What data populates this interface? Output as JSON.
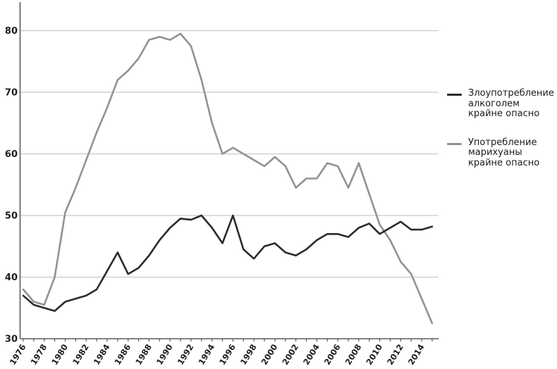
{
  "chart_data": {
    "type": "line",
    "title": "",
    "xlabel": "",
    "ylabel": "",
    "x": [
      1976,
      1977,
      1978,
      1979,
      1980,
      1981,
      1982,
      1983,
      1984,
      1985,
      1986,
      1987,
      1988,
      1989,
      1990,
      1991,
      1992,
      1993,
      1994,
      1995,
      1996,
      1997,
      1998,
      1999,
      2000,
      2001,
      2002,
      2003,
      2004,
      2005,
      2006,
      2007,
      2008,
      2009,
      2010,
      2011,
      2012,
      2013,
      2014,
      2015
    ],
    "series": [
      {
        "name": "Злоупотребление алкоголем крайне опасно",
        "color": "#2b2b2b",
        "values": [
          37,
          35.5,
          35,
          34.5,
          36,
          36.5,
          37,
          38,
          41,
          44,
          40.5,
          41.5,
          43.5,
          46,
          48,
          49.5,
          49.3,
          50,
          48,
          45.5,
          50,
          44.5,
          43,
          45,
          45.5,
          44,
          43.5,
          44.5,
          46,
          47,
          47,
          46.5,
          48,
          48.7,
          47,
          48,
          49,
          47.7,
          47.7,
          48.2
        ]
      },
      {
        "name": "Употребление марихуаны крайне опасно",
        "color": "#929292",
        "values": [
          38,
          36,
          35.5,
          40,
          50.5,
          54.5,
          59,
          63.5,
          67.5,
          72,
          73.5,
          75.5,
          78.5,
          79,
          78.5,
          79.5,
          77.5,
          72,
          65,
          60,
          61,
          60,
          59,
          58,
          59.5,
          58,
          54.5,
          56,
          56,
          58.5,
          58,
          54.5,
          58.5,
          53.5,
          48.5,
          46,
          42.5,
          40.5,
          36.5,
          32.5
        ]
      }
    ],
    "ylim": [
      30,
      80
    ],
    "ytick_labels": [
      "30",
      "40",
      "50",
      "60",
      "70",
      "80"
    ],
    "xtick_labels": [
      "1976",
      "1978",
      "1980",
      "1982",
      "1984",
      "1986",
      "1988",
      "1990",
      "1992",
      "1994",
      "1996",
      "1998",
      "2000",
      "2002",
      "2004",
      "2006",
      "2008",
      "2010",
      "2012",
      "2014"
    ],
    "grid": "horizontal",
    "legend_position": "right",
    "axis_color": "#5a5a5a",
    "grid_color": "#c9c9c9",
    "tick_label_color": "#1e1e1e"
  },
  "legend": {
    "items": [
      {
        "lines": [
          "Злоупотребление",
          "алкоголем",
          "крайне опасно"
        ],
        "color": "#2b2b2b"
      },
      {
        "lines": [
          "Употребление",
          "марихуаны",
          "крайне опасно"
        ],
        "color": "#929292"
      }
    ]
  }
}
